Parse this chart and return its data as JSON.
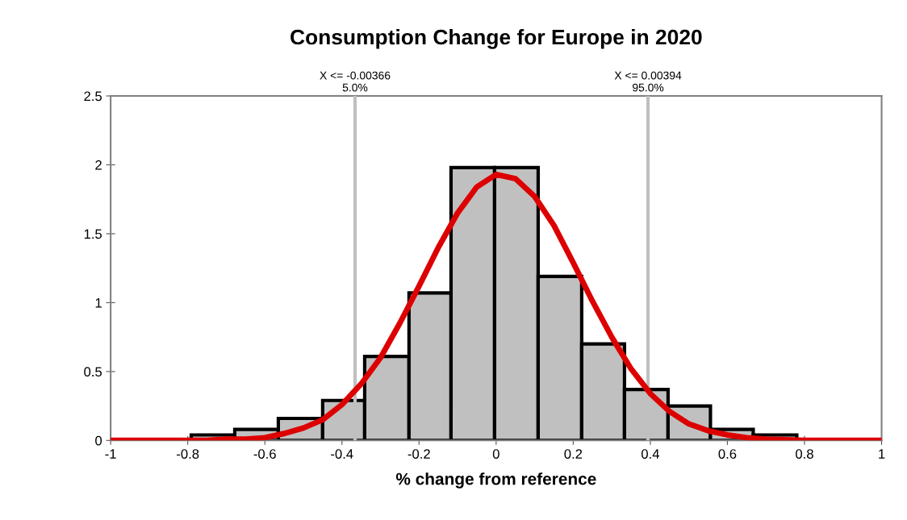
{
  "chart_data": {
    "type": "histogram",
    "title": "Consumption Change for Europe in 2020",
    "xlabel": "% change from reference",
    "bins": [
      -0.791,
      -0.678,
      -0.565,
      -0.45,
      -0.341,
      -0.226,
      -0.117,
      -0.004,
      0.109,
      0.222,
      0.333,
      0.446,
      0.556,
      0.667,
      0.78
    ],
    "values": [
      0.04,
      0.08,
      0.16,
      0.29,
      0.61,
      1.07,
      1.98,
      1.98,
      1.19,
      0.7,
      0.37,
      0.25,
      0.08,
      0.04
    ],
    "color": "#c0c0c0",
    "series": [
      {
        "type": "line",
        "color": "#dd0000",
        "x": [
          -1,
          -0.9,
          -0.8,
          -0.75,
          -0.7,
          -0.65,
          -0.6,
          -0.55,
          -0.5,
          -0.45,
          -0.4,
          -0.35,
          -0.3,
          -0.25,
          -0.2,
          -0.15,
          -0.1,
          -0.05,
          0,
          0.05,
          0.1,
          0.15,
          0.2,
          0.25,
          0.3,
          0.35,
          0.4,
          0.45,
          0.5,
          0.55,
          0.6,
          0.65,
          0.7,
          0.8,
          0.9,
          1
        ],
        "values": [
          0,
          0,
          0,
          0,
          0.01,
          0.01,
          0.02,
          0.05,
          0.09,
          0.15,
          0.26,
          0.41,
          0.6,
          0.85,
          1.12,
          1.4,
          1.65,
          1.84,
          1.93,
          1.9,
          1.77,
          1.56,
          1.29,
          1.01,
          0.75,
          0.52,
          0.34,
          0.21,
          0.12,
          0.07,
          0.04,
          0.02,
          0.01,
          0,
          0,
          0
        ]
      }
    ],
    "ref_lines": [
      {
        "axis": "x",
        "value": -0.366,
        "color": "#c0c0c0"
      },
      {
        "axis": "x",
        "value": 0.394,
        "color": "#c0c0c0"
      }
    ],
    "annotations": [
      "X <= -0.00366\n5.0%",
      "X <= 0.00394\n95.0%"
    ],
    "xlim": [
      -1,
      1
    ],
    "xticks": [
      -1,
      -0.8,
      -0.6,
      -0.4,
      -0.2,
      0,
      0.2,
      0.4,
      0.6,
      0.8,
      1
    ],
    "ylim": [
      0,
      2.5
    ],
    "yticks": [
      0,
      0.5,
      1,
      1.5,
      2,
      2.5
    ],
    "grid": false,
    "legend": false
  }
}
